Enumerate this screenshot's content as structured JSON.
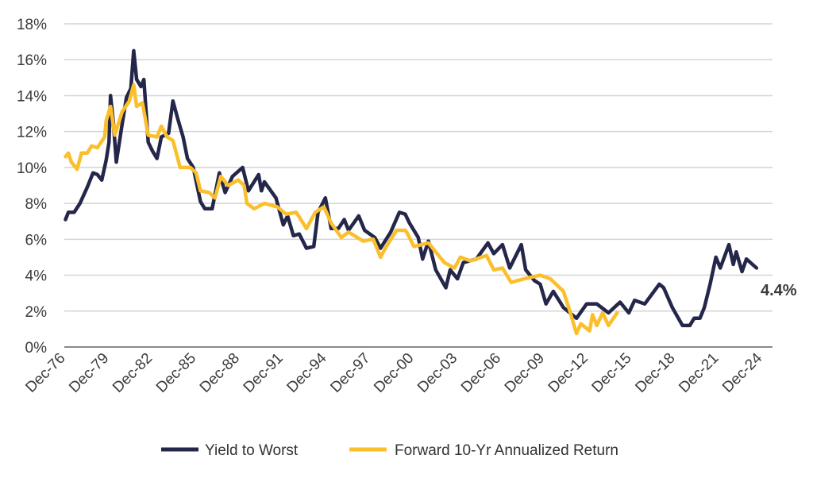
{
  "chart_data": {
    "type": "line",
    "title": "",
    "xlabel": "",
    "ylabel": "",
    "ylim": [
      0,
      18
    ],
    "xlim": [
      1976.92,
      2025.7
    ],
    "grid": true,
    "legend_placement": "bottom-center",
    "yticks": [
      0,
      2,
      4,
      6,
      8,
      10,
      12,
      14,
      16,
      18
    ],
    "ytick_labels": [
      "0%",
      "2%",
      "4%",
      "6%",
      "8%",
      "10%",
      "12%",
      "14%",
      "16%",
      "18%"
    ],
    "xticks": [
      1976.92,
      1979.92,
      1982.92,
      1985.92,
      1988.92,
      1991.92,
      1994.92,
      1997.92,
      2000.92,
      2003.92,
      2006.92,
      2009.92,
      2012.92,
      2015.92,
      2018.92,
      2021.92,
      2024.92
    ],
    "xtick_labels": [
      "Dec-76",
      "Dec-79",
      "Dec-82",
      "Dec-85",
      "Dec-88",
      "Dec-91",
      "Dec-94",
      "Dec-97",
      "Dec-00",
      "Dec-03",
      "Dec-06",
      "Dec-09",
      "Dec-12",
      "Dec-15",
      "Dec-18",
      "Dec-21",
      "Dec-24"
    ],
    "series": [
      {
        "name": "Yield to Worst",
        "color": "#24264a",
        "points": [
          [
            1977.0,
            7.1
          ],
          [
            1977.2,
            7.5
          ],
          [
            1977.6,
            7.5
          ],
          [
            1978.0,
            8.0
          ],
          [
            1978.5,
            8.9
          ],
          [
            1978.9,
            9.7
          ],
          [
            1979.2,
            9.6
          ],
          [
            1979.5,
            9.3
          ],
          [
            1979.8,
            10.4
          ],
          [
            1980.0,
            11.4
          ],
          [
            1980.1,
            14.0
          ],
          [
            1980.3,
            12.5
          ],
          [
            1980.5,
            10.3
          ],
          [
            1980.9,
            12.4
          ],
          [
            1981.2,
            13.9
          ],
          [
            1981.5,
            14.4
          ],
          [
            1981.7,
            16.5
          ],
          [
            1981.9,
            14.9
          ],
          [
            1982.2,
            14.5
          ],
          [
            1982.4,
            14.9
          ],
          [
            1982.7,
            11.4
          ],
          [
            1983.0,
            10.9
          ],
          [
            1983.3,
            10.5
          ],
          [
            1983.6,
            11.7
          ],
          [
            1984.1,
            11.9
          ],
          [
            1984.4,
            13.7
          ],
          [
            1984.7,
            12.8
          ],
          [
            1985.1,
            11.7
          ],
          [
            1985.4,
            10.5
          ],
          [
            1985.8,
            10.0
          ],
          [
            1986.3,
            8.1
          ],
          [
            1986.6,
            7.7
          ],
          [
            1987.1,
            7.7
          ],
          [
            1987.6,
            9.7
          ],
          [
            1988.0,
            8.6
          ],
          [
            1988.5,
            9.5
          ],
          [
            1989.2,
            10.0
          ],
          [
            1989.6,
            8.7
          ],
          [
            1990.3,
            9.6
          ],
          [
            1990.5,
            8.7
          ],
          [
            1990.7,
            9.2
          ],
          [
            1991.5,
            8.3
          ],
          [
            1992.0,
            6.8
          ],
          [
            1992.3,
            7.3
          ],
          [
            1992.7,
            6.2
          ],
          [
            1993.1,
            6.3
          ],
          [
            1993.6,
            5.5
          ],
          [
            1994.1,
            5.6
          ],
          [
            1994.4,
            7.5
          ],
          [
            1994.9,
            8.3
          ],
          [
            1995.3,
            6.6
          ],
          [
            1995.8,
            6.6
          ],
          [
            1996.2,
            7.1
          ],
          [
            1996.5,
            6.5
          ],
          [
            1997.2,
            7.3
          ],
          [
            1997.6,
            6.5
          ],
          [
            1998.3,
            6.1
          ],
          [
            1998.7,
            5.5
          ],
          [
            1999.4,
            6.4
          ],
          [
            2000.0,
            7.5
          ],
          [
            2000.4,
            7.4
          ],
          [
            2000.7,
            6.9
          ],
          [
            2001.3,
            6.1
          ],
          [
            2001.6,
            4.9
          ],
          [
            2002.0,
            5.9
          ],
          [
            2002.5,
            4.3
          ],
          [
            2003.2,
            3.3
          ],
          [
            2003.5,
            4.3
          ],
          [
            2004.0,
            3.8
          ],
          [
            2004.4,
            4.7
          ],
          [
            2005.3,
            4.9
          ],
          [
            2006.1,
            5.8
          ],
          [
            2006.5,
            5.2
          ],
          [
            2007.1,
            5.7
          ],
          [
            2007.6,
            4.4
          ],
          [
            2008.4,
            5.7
          ],
          [
            2008.7,
            4.3
          ],
          [
            2009.3,
            3.7
          ],
          [
            2009.7,
            3.5
          ],
          [
            2010.1,
            2.4
          ],
          [
            2010.6,
            3.1
          ],
          [
            2011.3,
            2.2
          ],
          [
            2012.2,
            1.6
          ],
          [
            2012.9,
            2.4
          ],
          [
            2013.6,
            2.4
          ],
          [
            2014.4,
            1.9
          ],
          [
            2015.2,
            2.5
          ],
          [
            2015.8,
            1.9
          ],
          [
            2016.2,
            2.6
          ],
          [
            2016.9,
            2.4
          ],
          [
            2017.9,
            3.5
          ],
          [
            2018.2,
            3.3
          ],
          [
            2018.8,
            2.2
          ],
          [
            2019.5,
            1.2
          ],
          [
            2020.0,
            1.2
          ],
          [
            2020.3,
            1.6
          ],
          [
            2020.7,
            1.6
          ],
          [
            2021.0,
            2.2
          ],
          [
            2021.4,
            3.5
          ],
          [
            2021.8,
            5.0
          ],
          [
            2022.1,
            4.4
          ],
          [
            2022.7,
            5.7
          ],
          [
            2023.0,
            4.6
          ],
          [
            2023.2,
            5.3
          ],
          [
            2023.6,
            4.2
          ],
          [
            2023.9,
            4.9
          ],
          [
            2024.6,
            4.4
          ]
        ]
      },
      {
        "name": "Forward 10-Yr Annualized Return",
        "color": "#fbbf2b",
        "points": [
          [
            1977.0,
            10.6
          ],
          [
            1977.2,
            10.8
          ],
          [
            1977.4,
            10.3
          ],
          [
            1977.8,
            9.9
          ],
          [
            1978.1,
            10.8
          ],
          [
            1978.5,
            10.8
          ],
          [
            1978.8,
            11.2
          ],
          [
            1979.2,
            11.1
          ],
          [
            1979.7,
            11.7
          ],
          [
            1979.8,
            12.6
          ],
          [
            1980.1,
            13.4
          ],
          [
            1980.4,
            11.8
          ],
          [
            1980.9,
            13.1
          ],
          [
            1981.4,
            13.7
          ],
          [
            1981.7,
            14.6
          ],
          [
            1981.9,
            13.4
          ],
          [
            1982.3,
            13.6
          ],
          [
            1982.7,
            11.8
          ],
          [
            1983.3,
            11.7
          ],
          [
            1983.6,
            12.3
          ],
          [
            1984.0,
            11.7
          ],
          [
            1984.4,
            11.5
          ],
          [
            1984.9,
            10.0
          ],
          [
            1985.6,
            10.0
          ],
          [
            1986.0,
            9.7
          ],
          [
            1986.3,
            8.7
          ],
          [
            1986.9,
            8.6
          ],
          [
            1987.3,
            8.3
          ],
          [
            1987.7,
            9.5
          ],
          [
            1988.2,
            9.0
          ],
          [
            1988.9,
            9.3
          ],
          [
            1989.3,
            9.0
          ],
          [
            1989.5,
            8.0
          ],
          [
            1990.0,
            7.7
          ],
          [
            1990.7,
            8.0
          ],
          [
            1991.6,
            7.8
          ],
          [
            1992.2,
            7.4
          ],
          [
            1992.9,
            7.5
          ],
          [
            1993.6,
            6.6
          ],
          [
            1994.2,
            7.5
          ],
          [
            1994.8,
            7.8
          ],
          [
            1995.3,
            6.9
          ],
          [
            1996.0,
            6.1
          ],
          [
            1996.5,
            6.4
          ],
          [
            1997.5,
            5.9
          ],
          [
            1998.2,
            6.0
          ],
          [
            1998.7,
            5.0
          ],
          [
            1999.1,
            5.6
          ],
          [
            1999.8,
            6.5
          ],
          [
            2000.4,
            6.5
          ],
          [
            2000.5,
            6.4
          ],
          [
            2001.0,
            5.6
          ],
          [
            2002.0,
            5.8
          ],
          [
            2003.1,
            4.7
          ],
          [
            2003.8,
            4.4
          ],
          [
            2004.2,
            5.0
          ],
          [
            2004.9,
            4.8
          ],
          [
            2006.0,
            5.1
          ],
          [
            2006.5,
            4.3
          ],
          [
            2007.1,
            4.4
          ],
          [
            2007.7,
            3.6
          ],
          [
            2008.6,
            3.8
          ],
          [
            2009.7,
            4.0
          ],
          [
            2010.4,
            3.8
          ],
          [
            2011.3,
            3.1
          ],
          [
            2011.7,
            2.1
          ],
          [
            2012.2,
            0.75
          ],
          [
            2012.5,
            1.3
          ],
          [
            2013.1,
            0.9
          ],
          [
            2013.3,
            1.8
          ],
          [
            2013.6,
            1.2
          ],
          [
            2014.0,
            1.9
          ],
          [
            2014.4,
            1.2
          ],
          [
            2015.0,
            1.9
          ]
        ]
      }
    ],
    "annotations": [
      {
        "text": "4.4%",
        "series": "Yield to Worst",
        "value": 4.4
      }
    ],
    "legend": [
      "Yield to Worst",
      "Forward 10-Yr Annualized Return"
    ]
  }
}
